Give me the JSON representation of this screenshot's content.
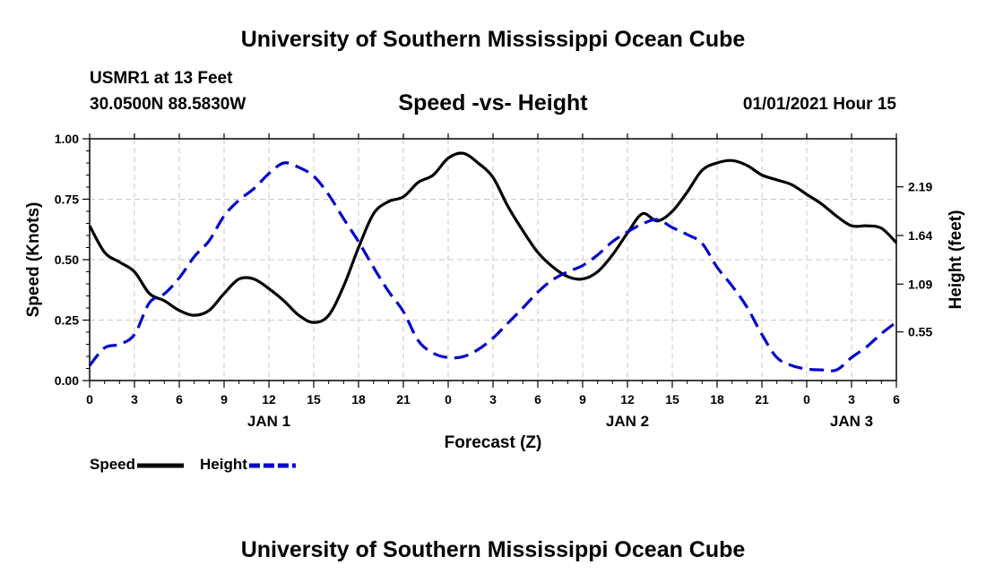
{
  "header": {
    "title": "University of Southern Mississippi Ocean Cube",
    "station": "USMR1 at 13 Feet",
    "coords": "30.0500N 88.5830W",
    "subtitle": "Speed -vs- Height",
    "timestamp": "01/01/2021 Hour 15"
  },
  "footer": {
    "title": "University of Southern Mississippi Ocean Cube"
  },
  "chart_data": {
    "type": "line",
    "title": "Speed -vs- Height",
    "xlabel": "Forecast (Z)",
    "ylabel_left": "Speed (Knots)",
    "ylabel_right": "Height (feet)",
    "x_unit": "hours since 2021-01-01 00Z",
    "xlim": [
      0,
      54
    ],
    "ylim_left": [
      0,
      1.0
    ],
    "ylim_right": [
      0,
      2.733
    ],
    "grid": true,
    "x_ticks": [
      {
        "x": 0,
        "label": "0"
      },
      {
        "x": 3,
        "label": "3"
      },
      {
        "x": 6,
        "label": "6"
      },
      {
        "x": 9,
        "label": "9"
      },
      {
        "x": 12,
        "label": "12"
      },
      {
        "x": 15,
        "label": "15"
      },
      {
        "x": 18,
        "label": "18"
      },
      {
        "x": 21,
        "label": "21"
      },
      {
        "x": 24,
        "label": "0"
      },
      {
        "x": 27,
        "label": "3"
      },
      {
        "x": 30,
        "label": "6"
      },
      {
        "x": 33,
        "label": "9"
      },
      {
        "x": 36,
        "label": "12"
      },
      {
        "x": 39,
        "label": "15"
      },
      {
        "x": 42,
        "label": "18"
      },
      {
        "x": 45,
        "label": "21"
      },
      {
        "x": 48,
        "label": "0"
      },
      {
        "x": 51,
        "label": "3"
      },
      {
        "x": 54,
        "label": "6"
      }
    ],
    "day_labels": [
      {
        "x": 12,
        "label": "JAN 1"
      },
      {
        "x": 36,
        "label": "JAN 2"
      },
      {
        "x": 51,
        "label": "JAN 3"
      }
    ],
    "y_ticks_left": [
      {
        "v": 0.0,
        "label": "0.00"
      },
      {
        "v": 0.25,
        "label": "0.25"
      },
      {
        "v": 0.5,
        "label": "0.50"
      },
      {
        "v": 0.75,
        "label": "0.75"
      },
      {
        "v": 1.0,
        "label": "1.00"
      }
    ],
    "y_ticks_right": [
      {
        "v": 0.55,
        "label": "0.55"
      },
      {
        "v": 1.09,
        "label": "1.09"
      },
      {
        "v": 1.64,
        "label": "1.64"
      },
      {
        "v": 2.19,
        "label": "2.19"
      }
    ],
    "legend": [
      {
        "name": "Speed",
        "color": "#000000",
        "dash": "solid"
      },
      {
        "name": "Height",
        "color": "#0000cc",
        "dash": "dashed"
      }
    ],
    "series": [
      {
        "name": "Speed",
        "axis": "left",
        "color": "#000000",
        "x": [
          0,
          1,
          2,
          3,
          4,
          5,
          6,
          7,
          8,
          9,
          10,
          11,
          12,
          13,
          14,
          15,
          16,
          17,
          18,
          19,
          20,
          21,
          22,
          23,
          24,
          25,
          26,
          27,
          28,
          29,
          30,
          31,
          32,
          33,
          34,
          35,
          36,
          37,
          38,
          39,
          40,
          41,
          42,
          43,
          44,
          45,
          46,
          47,
          48,
          49,
          50,
          51,
          52,
          53,
          54
        ],
        "values": [
          0.64,
          0.53,
          0.49,
          0.45,
          0.36,
          0.33,
          0.29,
          0.27,
          0.29,
          0.36,
          0.42,
          0.42,
          0.38,
          0.33,
          0.27,
          0.24,
          0.27,
          0.39,
          0.55,
          0.69,
          0.74,
          0.76,
          0.82,
          0.85,
          0.92,
          0.94,
          0.9,
          0.84,
          0.72,
          0.62,
          0.53,
          0.47,
          0.43,
          0.42,
          0.45,
          0.52,
          0.61,
          0.69,
          0.66,
          0.7,
          0.78,
          0.87,
          0.9,
          0.91,
          0.89,
          0.85,
          0.83,
          0.81,
          0.77,
          0.73,
          0.68,
          0.64,
          0.64,
          0.63,
          0.57
        ]
      },
      {
        "name": "Height",
        "axis": "right",
        "color": "#0000cc",
        "x": [
          0,
          1,
          2,
          3,
          4,
          5,
          6,
          7,
          8,
          9,
          10,
          11,
          12,
          13,
          14,
          15,
          16,
          17,
          18,
          19,
          20,
          21,
          22,
          23,
          24,
          25,
          26,
          27,
          28,
          29,
          30,
          31,
          32,
          33,
          34,
          35,
          36,
          37,
          38,
          39,
          40,
          41,
          42,
          43,
          44,
          45,
          46,
          47,
          48,
          49,
          50,
          51,
          52,
          53,
          54
        ],
        "values": [
          0.17,
          0.37,
          0.41,
          0.52,
          0.88,
          0.98,
          1.16,
          1.4,
          1.58,
          1.86,
          2.04,
          2.17,
          2.34,
          2.46,
          2.41,
          2.31,
          2.1,
          1.83,
          1.57,
          1.28,
          1.01,
          0.78,
          0.45,
          0.31,
          0.26,
          0.27,
          0.35,
          0.48,
          0.65,
          0.82,
          1.0,
          1.14,
          1.23,
          1.3,
          1.42,
          1.57,
          1.68,
          1.77,
          1.82,
          1.73,
          1.65,
          1.55,
          1.28,
          1.07,
          0.83,
          0.52,
          0.26,
          0.17,
          0.13,
          0.12,
          0.12,
          0.26,
          0.38,
          0.53,
          0.66
        ]
      }
    ]
  }
}
